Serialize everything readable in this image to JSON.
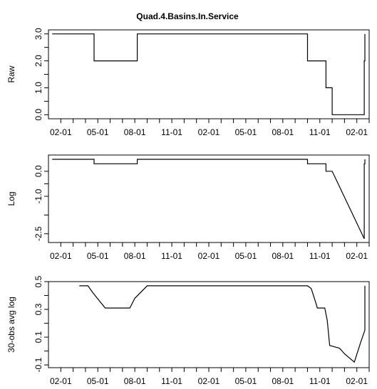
{
  "title": "Quad.4.Basins.In.Service",
  "chart_data": [
    {
      "type": "line",
      "title": "Quad.4.Basins.In.Service",
      "ylabel": "Raw",
      "ylim": [
        -0.15,
        3.15
      ],
      "yticks": [
        0.0,
        1.0,
        2.0,
        3.0
      ],
      "ytick_labels": [
        "0.0",
        "1.0",
        "2.0",
        "3.0"
      ],
      "xticks": [
        1,
        4,
        7,
        10,
        13,
        16,
        19,
        22,
        25
      ],
      "xtick_labels": [
        "02-01",
        "05-01",
        "08-01",
        "11-01",
        "02-01",
        "05-01",
        "08-01",
        "11-01",
        "02-01"
      ],
      "xlim": [
        0,
        26
      ],
      "grid": false,
      "series": [
        {
          "x": [
            0.3,
            3.7,
            3.7,
            7.2,
            7.2,
            21.0,
            21.0,
            22.5,
            22.5,
            23.0,
            23.0,
            23.6,
            23.6,
            25.5,
            25.5,
            25.6,
            25.6,
            26.0,
            26.0,
            26.0,
            26.6
          ],
          "y": [
            3,
            3,
            2,
            2,
            3,
            3,
            2,
            2,
            1,
            1,
            0,
            0,
            0,
            0,
            0,
            0,
            2,
            2,
            3,
            3,
            3
          ]
        }
      ]
    },
    {
      "type": "line",
      "ylabel": "Log",
      "ylim": [
        -2.85,
        0.65
      ],
      "yticks": [
        -2.5,
        -1.0,
        0.0
      ],
      "ytick_labels": [
        "-2.5",
        "-1.0",
        "0.0"
      ],
      "xticks": [
        1,
        4,
        7,
        10,
        13,
        16,
        19,
        22,
        25
      ],
      "xtick_labels": [
        "02-01",
        "05-01",
        "08-01",
        "11-01",
        "02-01",
        "05-01",
        "08-01",
        "11-01",
        "02-01"
      ],
      "xlim": [
        0,
        26
      ],
      "grid": false,
      "series": [
        {
          "x": [
            0.3,
            3.7,
            3.7,
            7.2,
            7.2,
            21.0,
            21.0,
            22.5,
            22.5,
            23.0,
            25.6,
            25.6,
            25.8,
            26.0,
            26.6
          ],
          "y": [
            0.48,
            0.48,
            0.3,
            0.3,
            0.48,
            0.48,
            0.3,
            0.3,
            0.0,
            0.0,
            -2.7,
            0.3,
            0.3,
            0.48,
            0.48
          ]
        }
      ]
    },
    {
      "type": "line",
      "ylabel": "30-obs avg log",
      "ylim": [
        -0.12,
        0.5
      ],
      "yticks": [
        -0.1,
        0.1,
        0.3,
        0.5
      ],
      "ytick_labels": [
        "-0.1",
        "0.1",
        "0.3",
        "0.5"
      ],
      "xticks": [
        1,
        4,
        7,
        10,
        13,
        16,
        19,
        22,
        25
      ],
      "xtick_labels": [
        "02-01",
        "05-01",
        "08-01",
        "11-01",
        "02-01",
        "05-01",
        "08-01",
        "11-01",
        "02-01"
      ],
      "xlim": [
        0,
        26
      ],
      "grid": false,
      "series": [
        {
          "x": [
            2.5,
            3.2,
            3.6,
            4.6,
            5.0,
            6.6,
            7.0,
            8.0,
            21.0,
            21.3,
            21.6,
            21.8,
            22.4,
            22.6,
            22.8,
            23.6,
            24.0,
            24.8,
            25.3,
            25.7,
            26.0,
            28.2
          ],
          "y": [
            0.47,
            0.47,
            0.42,
            0.31,
            0.31,
            0.31,
            0.38,
            0.47,
            0.47,
            0.45,
            0.37,
            0.31,
            0.31,
            0.22,
            0.04,
            0.02,
            -0.02,
            -0.08,
            0.06,
            0.15,
            0.3,
            0.47
          ]
        }
      ]
    }
  ]
}
